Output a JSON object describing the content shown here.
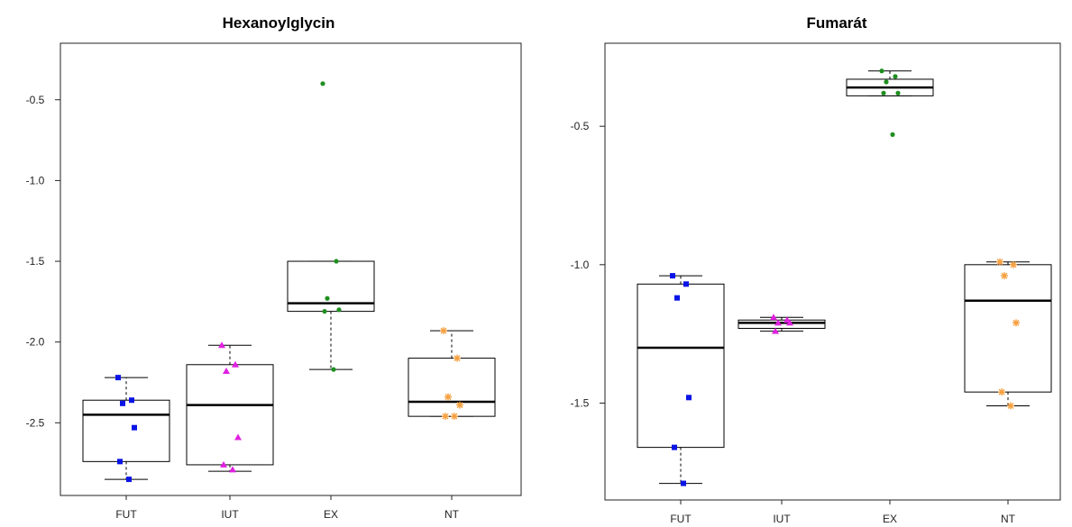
{
  "chart_data": [
    {
      "type": "box",
      "title": "Hexanoylglycin",
      "categories": [
        "FUT",
        "IUT",
        "EX",
        "NT"
      ],
      "yticks": [
        -0.5,
        -1.0,
        -1.5,
        -2.0,
        -2.5
      ],
      "ytick_labels": [
        "-0.5",
        "-1.0",
        "-1.5",
        "-2.0",
        "-2.5"
      ],
      "ylim": [
        -2.95,
        -0.15
      ],
      "boxes": [
        {
          "category": "FUT",
          "whisker_low": -2.85,
          "q1": -2.74,
          "median": -2.45,
          "q3": -2.36,
          "whisker_high": -2.22
        },
        {
          "category": "IUT",
          "whisker_low": -2.8,
          "q1": -2.76,
          "median": -2.39,
          "q3": -2.14,
          "whisker_high": -2.02
        },
        {
          "category": "EX",
          "whisker_low": -2.17,
          "q1": -1.81,
          "median": -1.76,
          "q3": -1.5,
          "whisker_high": -1.5
        },
        {
          "category": "NT",
          "whisker_low": -2.46,
          "q1": -2.46,
          "median": -2.37,
          "q3": -2.1,
          "whisker_high": -1.93
        }
      ],
      "points": [
        {
          "category": "FUT",
          "values": [
            -2.22,
            -2.36,
            -2.38,
            -2.53,
            -2.74,
            -2.85
          ]
        },
        {
          "category": "IUT",
          "values": [
            -2.02,
            -2.14,
            -2.18,
            -2.59,
            -2.76,
            -2.79
          ]
        },
        {
          "category": "EX",
          "values": [
            -0.4,
            -1.5,
            -1.73,
            -1.8,
            -1.81,
            -2.17
          ]
        },
        {
          "category": "NT",
          "values": [
            -1.93,
            -2.1,
            -2.34,
            -2.39,
            -2.46,
            -2.46
          ]
        }
      ]
    },
    {
      "type": "box",
      "title": "Fumarát",
      "categories": [
        "FUT",
        "IUT",
        "EX",
        "NT"
      ],
      "yticks": [
        -0.5,
        -1.0,
        -1.5
      ],
      "ytick_labels": [
        "-0.5",
        "-1.0",
        "-1.5"
      ],
      "ylim": [
        -1.85,
        -0.2
      ],
      "boxes": [
        {
          "category": "FUT",
          "whisker_low": -1.79,
          "q1": -1.66,
          "median": -1.3,
          "q3": -1.07,
          "whisker_high": -1.04
        },
        {
          "category": "IUT",
          "whisker_low": -1.24,
          "q1": -1.23,
          "median": -1.21,
          "q3": -1.2,
          "whisker_high": -1.19
        },
        {
          "category": "EX",
          "whisker_low": -0.39,
          "q1": -0.39,
          "median": -0.36,
          "q3": -0.33,
          "whisker_high": -0.3
        },
        {
          "category": "NT",
          "whisker_low": -1.51,
          "q1": -1.46,
          "median": -1.13,
          "q3": -1.0,
          "whisker_high": -0.99
        }
      ],
      "points": [
        {
          "category": "FUT",
          "values": [
            -1.04,
            -1.07,
            -1.12,
            -1.48,
            -1.66,
            -1.79
          ]
        },
        {
          "category": "IUT",
          "values": [
            -1.19,
            -1.2,
            -1.21,
            -1.21,
            -1.24
          ]
        },
        {
          "category": "EX",
          "values": [
            -0.3,
            -0.32,
            -0.34,
            -0.38,
            -0.38,
            -0.53
          ]
        },
        {
          "category": "NT",
          "values": [
            -0.99,
            -1.0,
            -1.04,
            -1.21,
            -1.46,
            -1.51
          ]
        }
      ]
    }
  ],
  "styles": {
    "box_border": "#000000",
    "box_fill": "#ffffff",
    "frame": "#222222",
    "point_styles": {
      "FUT": {
        "color": "#0a14e6",
        "marker": "square"
      },
      "IUT": {
        "color": "#e020e0",
        "marker": "triangle"
      },
      "EX": {
        "color": "#1f8f1f",
        "marker": "circle"
      },
      "NT": {
        "color": "#f5a040",
        "marker": "asterisk"
      }
    }
  }
}
